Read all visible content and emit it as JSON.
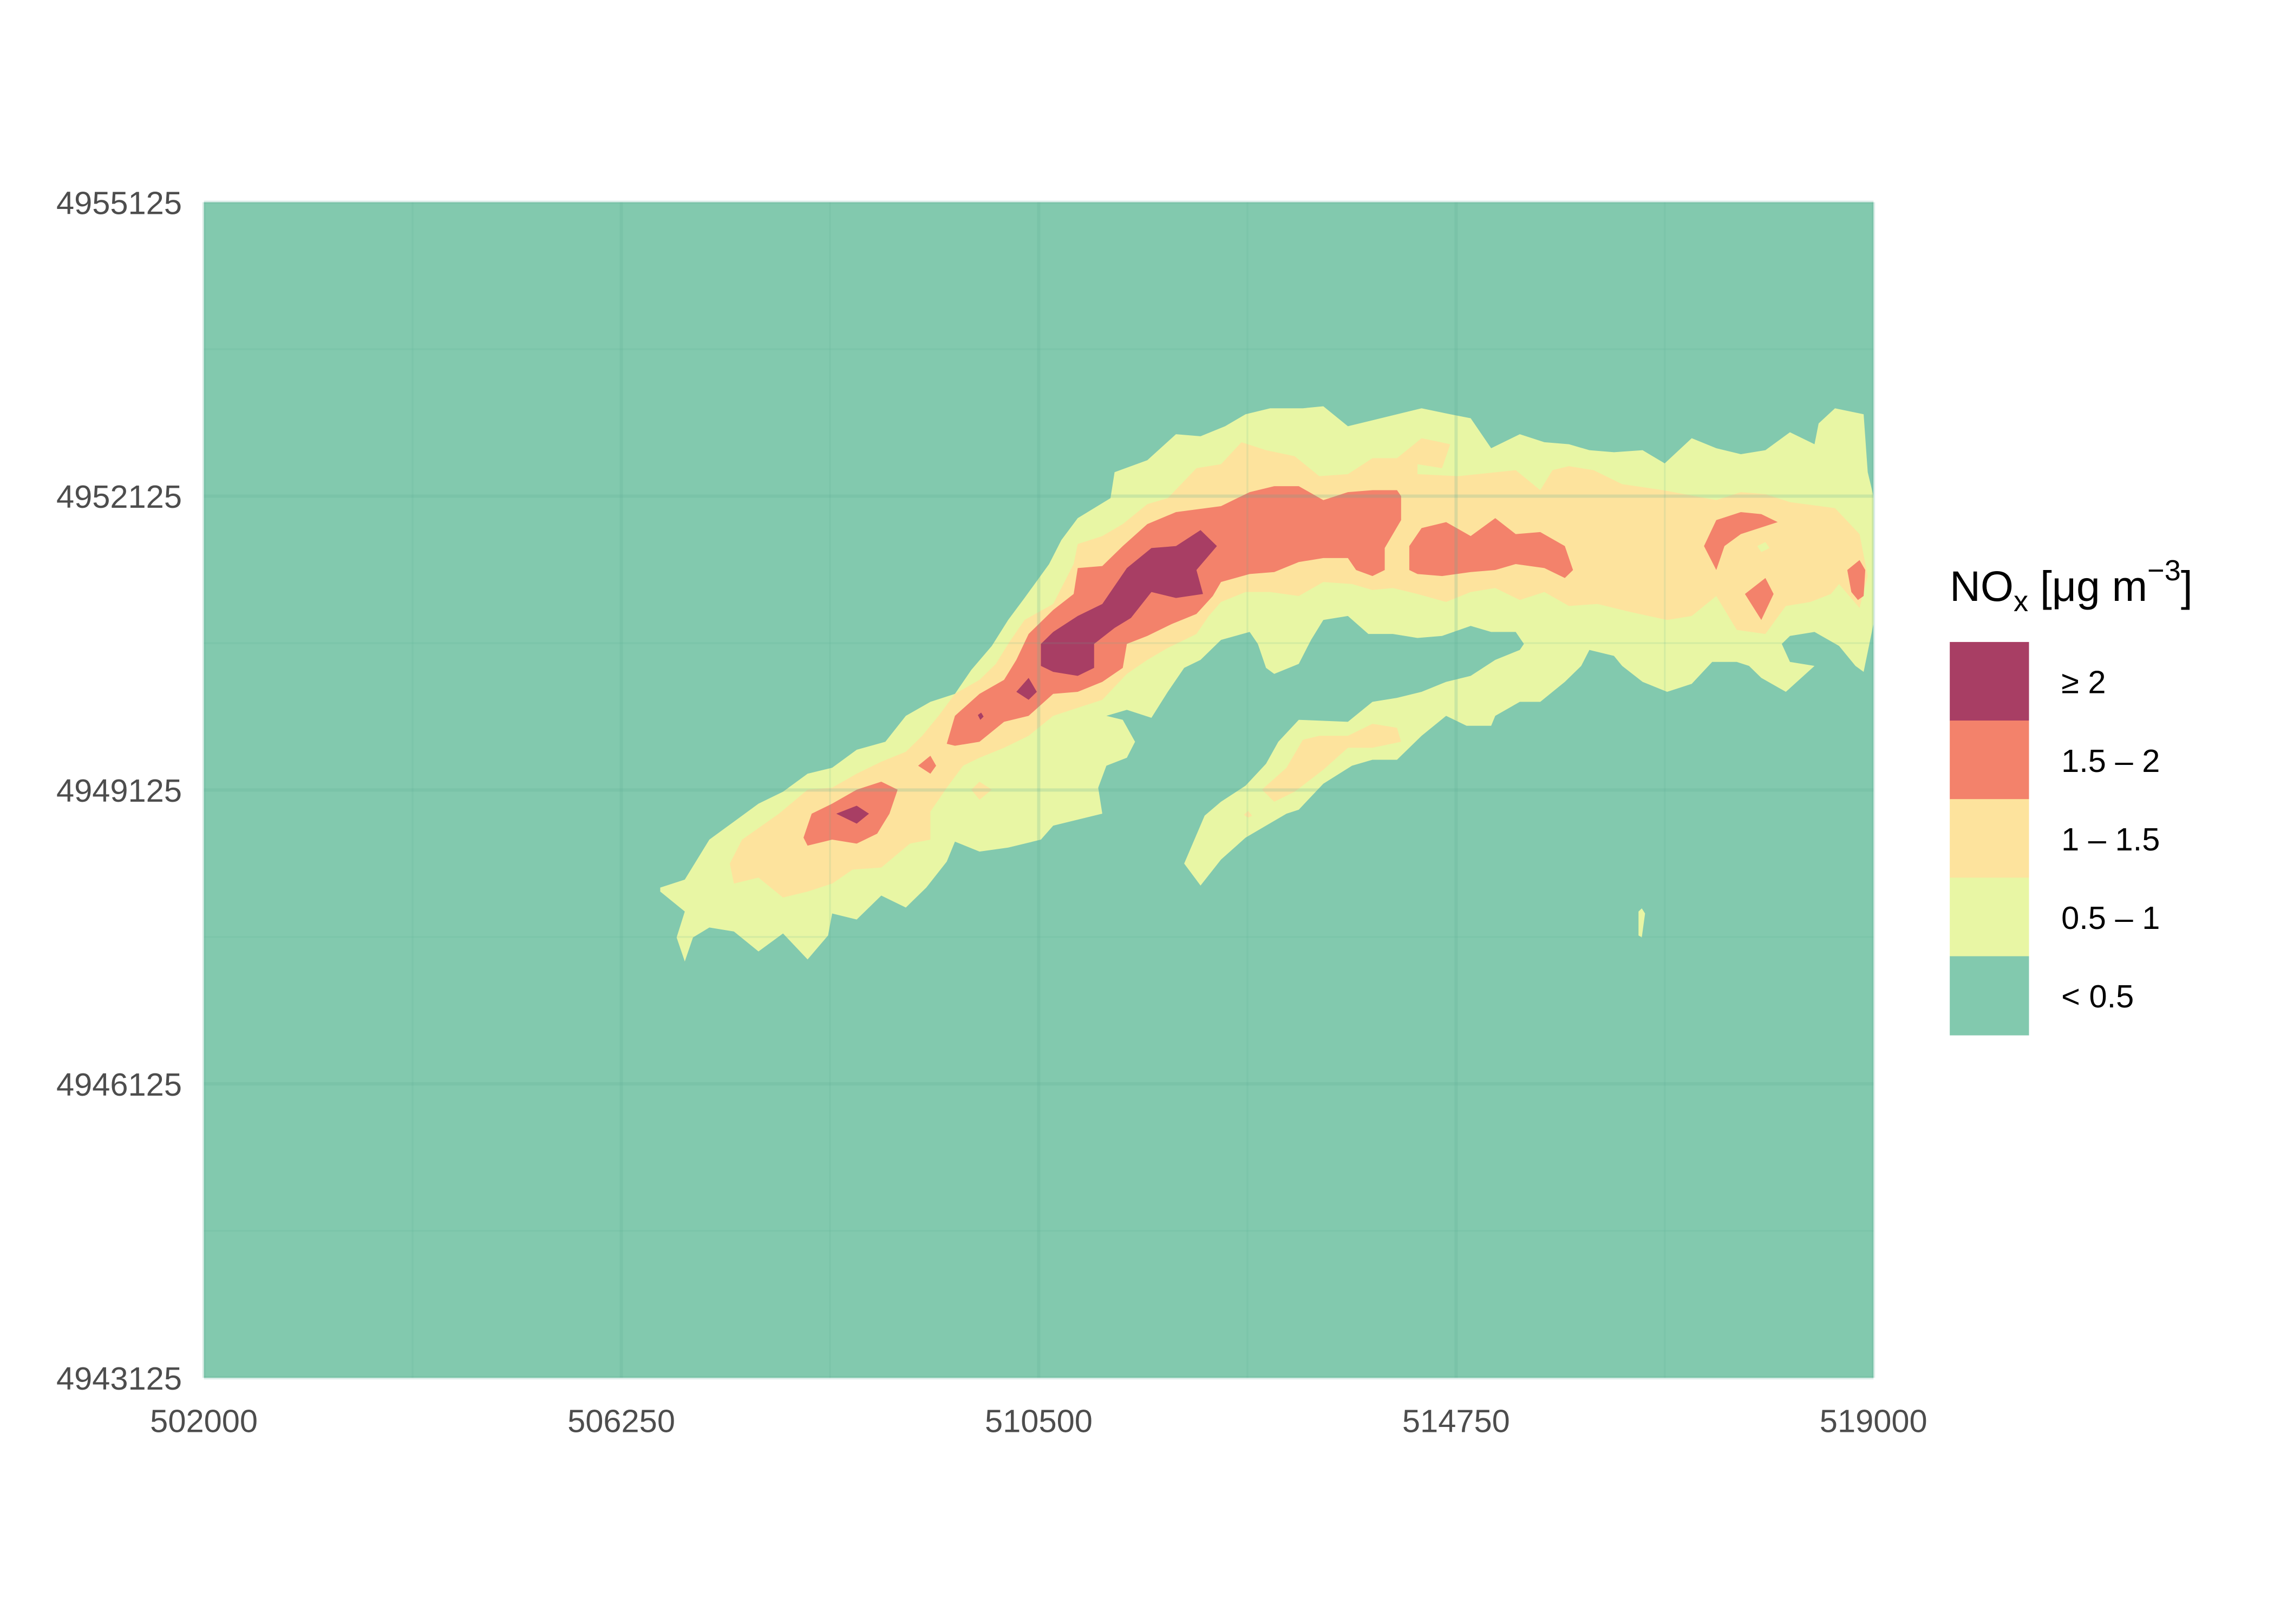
{
  "chart_data": {
    "type": "heatmap",
    "subtype": "filled-contour",
    "title": "",
    "xlabel": "",
    "ylabel": "",
    "xlim": [
      502000,
      519000
    ],
    "ylim": [
      4943125,
      4955125
    ],
    "x_ticks": [
      "502000",
      "506250",
      "510500",
      "514750",
      "519000"
    ],
    "y_ticks": [
      "4943125",
      "4946125",
      "4949125",
      "4952125",
      "4955125"
    ],
    "x_tick_values": [
      502000,
      506250,
      510500,
      514750,
      519000
    ],
    "y_tick_values": [
      4943125,
      4946125,
      4949125,
      4952125,
      4955125
    ],
    "grid": true,
    "legend": {
      "title_main": "NO",
      "title_sub": "x",
      "title_unit": " [μg m",
      "title_sup": "−3",
      "title_close": "]",
      "placement": "right",
      "levels": [
        {
          "label": "≥ 2",
          "color": "#a83e64"
        },
        {
          "label": "1.5 – 2",
          "color": "#f3826b"
        },
        {
          "label": "1 – 1.5",
          "color": "#fde39d"
        },
        {
          "label": "0.5 – 1",
          "color": "#e8f6a4"
        },
        {
          "label": "< 0.5",
          "color": "#82c9ae"
        }
      ]
    },
    "description_of_field": "NOx concentration plume elongated from southwest (~506500, 4948000) to east (~519000, 4951500), peak ≥ 2 near (510800, 4950600)"
  }
}
